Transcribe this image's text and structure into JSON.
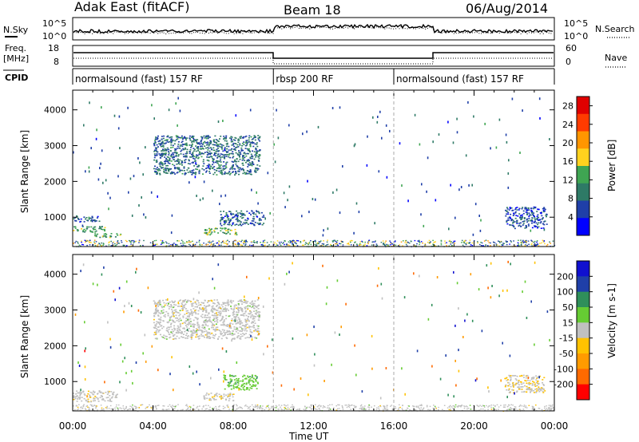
{
  "header": {
    "radar": "Adak East (fitACF)",
    "beam": "Beam 18",
    "date": "06/Aug/2014"
  },
  "status_panels": {
    "nsky_label": "N.Sky",
    "nsearch_label": "N.Search",
    "freq_label": "Freq.",
    "freq_unit": "[MHz]",
    "nave_label": "Nave",
    "cpid_label": "CPID",
    "noise_ticks": [
      "10^5",
      "10^0"
    ],
    "freq_ticks": [
      "18",
      "8"
    ],
    "nave_ticks": [
      "60",
      "0"
    ]
  },
  "cpid_segments": [
    {
      "label": "normalsound (fast) 157 RF",
      "start_hour": 0,
      "end_hour": 10
    },
    {
      "label": "rbsp 200 RF",
      "start_hour": 10,
      "end_hour": 16
    },
    {
      "label": "normalsound (fast) 157 RF",
      "start_hour": 16,
      "end_hour": 24
    }
  ],
  "chart_data": [
    {
      "type": "heatmap",
      "title": "Power",
      "xlabel": "Time UT",
      "ylabel": "Slant Range [km]",
      "x_ticks": [
        "00:00",
        "04:00",
        "08:00",
        "12:00",
        "16:00",
        "20:00",
        "00:00"
      ],
      "x_range_hours": [
        0,
        24
      ],
      "y_ticks": [
        1000,
        2000,
        3000,
        4000
      ],
      "ylim": [
        180,
        4550
      ],
      "colorbar": {
        "label": "Power [dB]",
        "ticks": [
          4,
          8,
          12,
          16,
          20,
          24,
          28
        ],
        "range": [
          0,
          30
        ],
        "colors": [
          "#0000ff",
          "#1f3fa8",
          "#2e7a66",
          "#3fa552",
          "#ffd21e",
          "#ff9600",
          "#ff3b00",
          "#e00000"
        ]
      },
      "regions": [
        {
          "t": [
            4.0,
            9.3
          ],
          "r": [
            2200,
            3300
          ],
          "value": 8
        },
        {
          "t": [
            0.0,
            1.7
          ],
          "r": [
            600,
            760
          ],
          "value": 12
        },
        {
          "t": [
            0.0,
            1.3
          ],
          "r": [
            880,
            1050
          ],
          "value": 6
        },
        {
          "t": [
            1.0,
            2.4
          ],
          "r": [
            450,
            560
          ],
          "value": 14
        },
        {
          "t": [
            6.5,
            8.2
          ],
          "r": [
            520,
            720
          ],
          "value": 14
        },
        {
          "t": [
            7.3,
            9.5
          ],
          "r": [
            780,
            1200
          ],
          "value": 7
        },
        {
          "t": [
            21.5,
            23.6
          ],
          "r": [
            700,
            1300
          ],
          "value": 6
        }
      ]
    },
    {
      "type": "heatmap",
      "title": "Velocity",
      "xlabel": "Time UT",
      "ylabel": "Slant Range [km]",
      "x_ticks": [
        "00:00",
        "04:00",
        "08:00",
        "12:00",
        "16:00",
        "20:00",
        "00:00"
      ],
      "x_range_hours": [
        0,
        24
      ],
      "y_ticks": [
        1000,
        2000,
        3000,
        4000
      ],
      "ylim": [
        180,
        4550
      ],
      "colorbar": {
        "label": "Velocity [m s-1]",
        "ticks": [
          200,
          100,
          50,
          15,
          -15,
          -50,
          -100,
          -200
        ],
        "range": [
          -250,
          250
        ],
        "colors": [
          "#ff0000",
          "#ff6a00",
          "#ff9b00",
          "#ffc200",
          "#c0c0c0",
          "#66cc33",
          "#2f8f5a",
          "#1f3fa8",
          "#1010d0"
        ]
      },
      "regions": [
        {
          "t": [
            4.0,
            9.3
          ],
          "r": [
            2200,
            3300
          ],
          "value": 0
        },
        {
          "t": [
            0.0,
            2.2
          ],
          "r": [
            450,
            760
          ],
          "value": -5
        },
        {
          "t": [
            7.5,
            9.2
          ],
          "r": [
            780,
            1200
          ],
          "value": 60
        },
        {
          "t": [
            6.5,
            8.0
          ],
          "r": [
            480,
            700
          ],
          "value": -10
        },
        {
          "t": [
            21.5,
            23.5
          ],
          "r": [
            700,
            1200
          ],
          "value": -20
        }
      ]
    }
  ]
}
